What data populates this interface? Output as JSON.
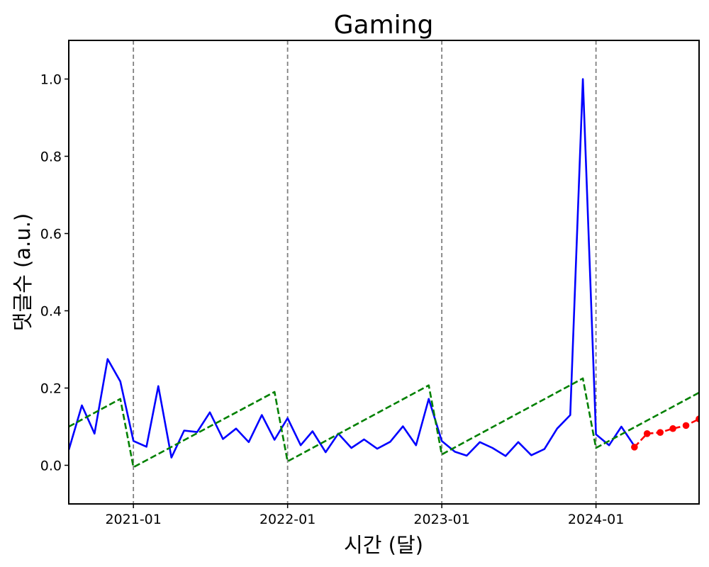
{
  "chart_data": {
    "type": "line",
    "title": "Gaming",
    "xlabel": "시간 (달)",
    "ylabel": "댓글수 (a.u.)",
    "xlim": [
      "2020-08-01",
      "2024-09-01"
    ],
    "ylim": [
      -0.1,
      1.1
    ],
    "x_ticks": [
      {
        "date": "2021-01-01",
        "label": "2021-01"
      },
      {
        "date": "2022-01-01",
        "label": "2022-01"
      },
      {
        "date": "2023-01-01",
        "label": "2023-01"
      },
      {
        "date": "2024-01-01",
        "label": "2024-01"
      }
    ],
    "y_ticks": [
      {
        "value": 0.0,
        "label": "0.0"
      },
      {
        "value": 0.2,
        "label": "0.2"
      },
      {
        "value": 0.4,
        "label": "0.4"
      },
      {
        "value": 0.6,
        "label": "0.6"
      },
      {
        "value": 0.8,
        "label": "0.8"
      },
      {
        "value": 1.0,
        "label": "1.0"
      }
    ],
    "vlines": [
      "2021-01-01",
      "2022-01-01",
      "2023-01-01",
      "2024-01-01"
    ],
    "grid": false,
    "legend": "none",
    "series": [
      {
        "style": "solid",
        "color": "#0000ff",
        "points": [
          [
            "2020-08-01",
            0.04
          ],
          [
            "2020-09-01",
            0.155
          ],
          [
            "2020-10-01",
            0.082
          ],
          [
            "2020-11-01",
            0.275
          ],
          [
            "2020-12-01",
            0.217
          ],
          [
            "2021-01-01",
            0.063
          ],
          [
            "2021-02-01",
            0.048
          ],
          [
            "2021-03-01",
            0.205
          ],
          [
            "2021-04-01",
            0.02
          ],
          [
            "2021-05-01",
            0.09
          ],
          [
            "2021-06-01",
            0.086
          ],
          [
            "2021-07-01",
            0.137
          ],
          [
            "2021-08-01",
            0.068
          ],
          [
            "2021-09-01",
            0.095
          ],
          [
            "2021-10-01",
            0.06
          ],
          [
            "2021-11-01",
            0.13
          ],
          [
            "2021-12-01",
            0.066
          ],
          [
            "2022-01-01",
            0.122
          ],
          [
            "2022-02-01",
            0.052
          ],
          [
            "2022-03-01",
            0.088
          ],
          [
            "2022-04-01",
            0.034
          ],
          [
            "2022-05-01",
            0.082
          ],
          [
            "2022-06-01",
            0.045
          ],
          [
            "2022-07-01",
            0.067
          ],
          [
            "2022-08-01",
            0.043
          ],
          [
            "2022-09-01",
            0.061
          ],
          [
            "2022-10-01",
            0.101
          ],
          [
            "2022-11-01",
            0.052
          ],
          [
            "2022-12-01",
            0.172
          ],
          [
            "2023-01-01",
            0.063
          ],
          [
            "2023-02-01",
            0.035
          ],
          [
            "2023-03-01",
            0.025
          ],
          [
            "2023-04-01",
            0.06
          ],
          [
            "2023-05-01",
            0.045
          ],
          [
            "2023-06-01",
            0.024
          ],
          [
            "2023-07-01",
            0.06
          ],
          [
            "2023-08-01",
            0.026
          ],
          [
            "2023-09-01",
            0.042
          ],
          [
            "2023-10-01",
            0.095
          ],
          [
            "2023-11-01",
            0.13
          ],
          [
            "2023-12-01",
            1.0
          ],
          [
            "2024-01-01",
            0.08
          ],
          [
            "2024-02-01",
            0.052
          ],
          [
            "2024-03-01",
            0.1
          ],
          [
            "2024-04-01",
            0.05
          ]
        ]
      },
      {
        "style": "dashed",
        "color": "#008000",
        "points": [
          [
            "2020-08-01",
            0.1
          ],
          [
            "2020-12-01",
            0.172
          ],
          [
            "2021-01-01",
            -0.005
          ],
          [
            "2021-12-01",
            0.19
          ],
          [
            "2022-01-01",
            0.01
          ],
          [
            "2022-12-01",
            0.207
          ],
          [
            "2023-01-01",
            0.028
          ],
          [
            "2023-12-01",
            0.225
          ],
          [
            "2024-01-01",
            0.045
          ],
          [
            "2024-09-01",
            0.188
          ]
        ]
      },
      {
        "style": "dashed",
        "color": "#ff0000",
        "marker": "circle",
        "points": [
          [
            "2024-04-01",
            0.047
          ],
          [
            "2024-05-01",
            0.082
          ],
          [
            "2024-06-01",
            0.085
          ],
          [
            "2024-07-01",
            0.095
          ],
          [
            "2024-08-01",
            0.103
          ],
          [
            "2024-09-01",
            0.12
          ]
        ]
      }
    ]
  }
}
